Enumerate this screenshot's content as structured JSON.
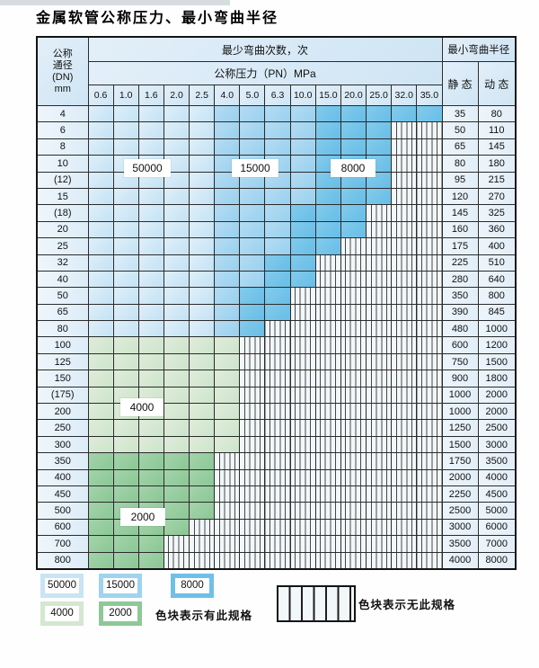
{
  "page": {
    "title": "金属软管公称压力、最小弯曲半径"
  },
  "table": {
    "headers": {
      "dn_lines": [
        "公称",
        "通径",
        "(DN)",
        "mm"
      ],
      "cycles": "最少弯曲次数，次",
      "pressure": "公称压力（PN）MPa",
      "radius": "最小弯曲半径",
      "static": "静 态",
      "dynamic": "动 态"
    },
    "pressures": [
      "0.6",
      "1.0",
      "1.6",
      "2.0",
      "2.5",
      "4.0",
      "5.0",
      "6.3",
      "10.0",
      "15.0",
      "20.0",
      "25.0",
      "32.0",
      "35.0"
    ],
    "rows": [
      {
        "dn": "4",
        "static": "35",
        "dynamic": "80",
        "zones": [
          [
            "50000",
            5
          ],
          [
            "15000",
            4
          ],
          [
            "8000",
            5
          ]
        ]
      },
      {
        "dn": "6",
        "static": "50",
        "dynamic": "110",
        "zones": [
          [
            "50000",
            5
          ],
          [
            "15000",
            4
          ],
          [
            "8000",
            3
          ],
          [
            null,
            2
          ]
        ]
      },
      {
        "dn": "8",
        "static": "65",
        "dynamic": "145",
        "zones": [
          [
            "50000",
            5
          ],
          [
            "15000",
            4
          ],
          [
            "8000",
            3
          ],
          [
            null,
            2
          ]
        ]
      },
      {
        "dn": "10",
        "static": "80",
        "dynamic": "180",
        "zones": [
          [
            "50000",
            5
          ],
          [
            "15000",
            4
          ],
          [
            "8000",
            3
          ],
          [
            null,
            2
          ]
        ]
      },
      {
        "dn": "(12)",
        "static": "95",
        "dynamic": "215",
        "zones": [
          [
            "50000",
            5
          ],
          [
            "15000",
            4
          ],
          [
            "8000",
            3
          ],
          [
            null,
            2
          ]
        ]
      },
      {
        "dn": "15",
        "static": "120",
        "dynamic": "270",
        "zones": [
          [
            "50000",
            5
          ],
          [
            "15000",
            4
          ],
          [
            "8000",
            3
          ],
          [
            null,
            2
          ]
        ]
      },
      {
        "dn": "(18)",
        "static": "145",
        "dynamic": "325",
        "zones": [
          [
            "50000",
            5
          ],
          [
            "15000",
            3
          ],
          [
            "8000",
            3
          ],
          [
            null,
            3
          ]
        ]
      },
      {
        "dn": "20",
        "static": "160",
        "dynamic": "360",
        "zones": [
          [
            "50000",
            5
          ],
          [
            "15000",
            3
          ],
          [
            "8000",
            3
          ],
          [
            null,
            3
          ]
        ]
      },
      {
        "dn": "25",
        "static": "175",
        "dynamic": "400",
        "zones": [
          [
            "50000",
            5
          ],
          [
            "15000",
            3
          ],
          [
            "8000",
            2
          ],
          [
            null,
            4
          ]
        ]
      },
      {
        "dn": "32",
        "static": "225",
        "dynamic": "510",
        "zones": [
          [
            "50000",
            5
          ],
          [
            "15000",
            2
          ],
          [
            "8000",
            2
          ],
          [
            null,
            5
          ]
        ]
      },
      {
        "dn": "40",
        "static": "280",
        "dynamic": "640",
        "zones": [
          [
            "50000",
            5
          ],
          [
            "15000",
            2
          ],
          [
            "8000",
            2
          ],
          [
            null,
            5
          ]
        ]
      },
      {
        "dn": "50",
        "static": "350",
        "dynamic": "800",
        "zones": [
          [
            "50000",
            5
          ],
          [
            "15000",
            1
          ],
          [
            "8000",
            2
          ],
          [
            null,
            6
          ]
        ]
      },
      {
        "dn": "65",
        "static": "390",
        "dynamic": "845",
        "zones": [
          [
            "50000",
            5
          ],
          [
            "15000",
            1
          ],
          [
            "8000",
            2
          ],
          [
            null,
            6
          ]
        ]
      },
      {
        "dn": "80",
        "static": "480",
        "dynamic": "1000",
        "zones": [
          [
            "50000",
            5
          ],
          [
            "15000",
            1
          ],
          [
            "8000",
            1
          ],
          [
            null,
            7
          ]
        ]
      },
      {
        "dn": "100",
        "static": "600",
        "dynamic": "1200",
        "zones": [
          [
            "4000",
            6
          ],
          [
            null,
            8
          ]
        ]
      },
      {
        "dn": "125",
        "static": "750",
        "dynamic": "1500",
        "zones": [
          [
            "4000",
            6
          ],
          [
            null,
            8
          ]
        ]
      },
      {
        "dn": "150",
        "static": "900",
        "dynamic": "1800",
        "zones": [
          [
            "4000",
            6
          ],
          [
            null,
            8
          ]
        ]
      },
      {
        "dn": "(175)",
        "static": "1000",
        "dynamic": "2000",
        "zones": [
          [
            "4000",
            6
          ],
          [
            null,
            8
          ]
        ]
      },
      {
        "dn": "200",
        "static": "1000",
        "dynamic": "2000",
        "zones": [
          [
            "4000",
            6
          ],
          [
            null,
            8
          ]
        ]
      },
      {
        "dn": "250",
        "static": "1250",
        "dynamic": "2500",
        "zones": [
          [
            "4000",
            6
          ],
          [
            null,
            8
          ]
        ]
      },
      {
        "dn": "300",
        "static": "1500",
        "dynamic": "3000",
        "zones": [
          [
            "4000",
            6
          ],
          [
            null,
            8
          ]
        ]
      },
      {
        "dn": "350",
        "static": "1750",
        "dynamic": "3500",
        "zones": [
          [
            "2000",
            5
          ],
          [
            null,
            9
          ]
        ]
      },
      {
        "dn": "400",
        "static": "2000",
        "dynamic": "4000",
        "zones": [
          [
            "2000",
            5
          ],
          [
            null,
            9
          ]
        ]
      },
      {
        "dn": "450",
        "static": "2250",
        "dynamic": "4500",
        "zones": [
          [
            "2000",
            5
          ],
          [
            null,
            9
          ]
        ]
      },
      {
        "dn": "500",
        "static": "2500",
        "dynamic": "5000",
        "zones": [
          [
            "2000",
            5
          ],
          [
            null,
            9
          ]
        ]
      },
      {
        "dn": "600",
        "static": "3000",
        "dynamic": "6000",
        "zones": [
          [
            "2000",
            4
          ],
          [
            null,
            10
          ]
        ]
      },
      {
        "dn": "700",
        "static": "3500",
        "dynamic": "7000",
        "zones": [
          [
            "2000",
            3
          ],
          [
            null,
            11
          ]
        ]
      },
      {
        "dn": "800",
        "static": "4000",
        "dynamic": "8000",
        "zones": [
          [
            "2000",
            3
          ],
          [
            null,
            11
          ]
        ]
      }
    ]
  },
  "annotations": {
    "a50000": "50000",
    "a15000": "15000",
    "a8000": "8000",
    "a4000": "4000",
    "a2000": "2000"
  },
  "legend": {
    "items": [
      {
        "value": "50000",
        "color": "#c9e4f5"
      },
      {
        "value": "15000",
        "color": "#9fd3ef"
      },
      {
        "value": "8000",
        "color": "#6fc0e8"
      },
      {
        "value": "4000",
        "color": "#d4e7d0"
      },
      {
        "value": "2000",
        "color": "#8ec898"
      }
    ],
    "has_spec_label": "色块表示有此规格",
    "no_spec_label": "色块表示无此规格"
  },
  "colors": {
    "cycle_50000": "#cde6f6",
    "cycle_15000": "#a5d6f1",
    "cycle_8000": "#72c3e9",
    "cycle_4000": "#d5e7d2",
    "cycle_2000": "#97cca0",
    "hatch_background": "#f2f7fa",
    "grid_line": "#2b2b2b"
  }
}
